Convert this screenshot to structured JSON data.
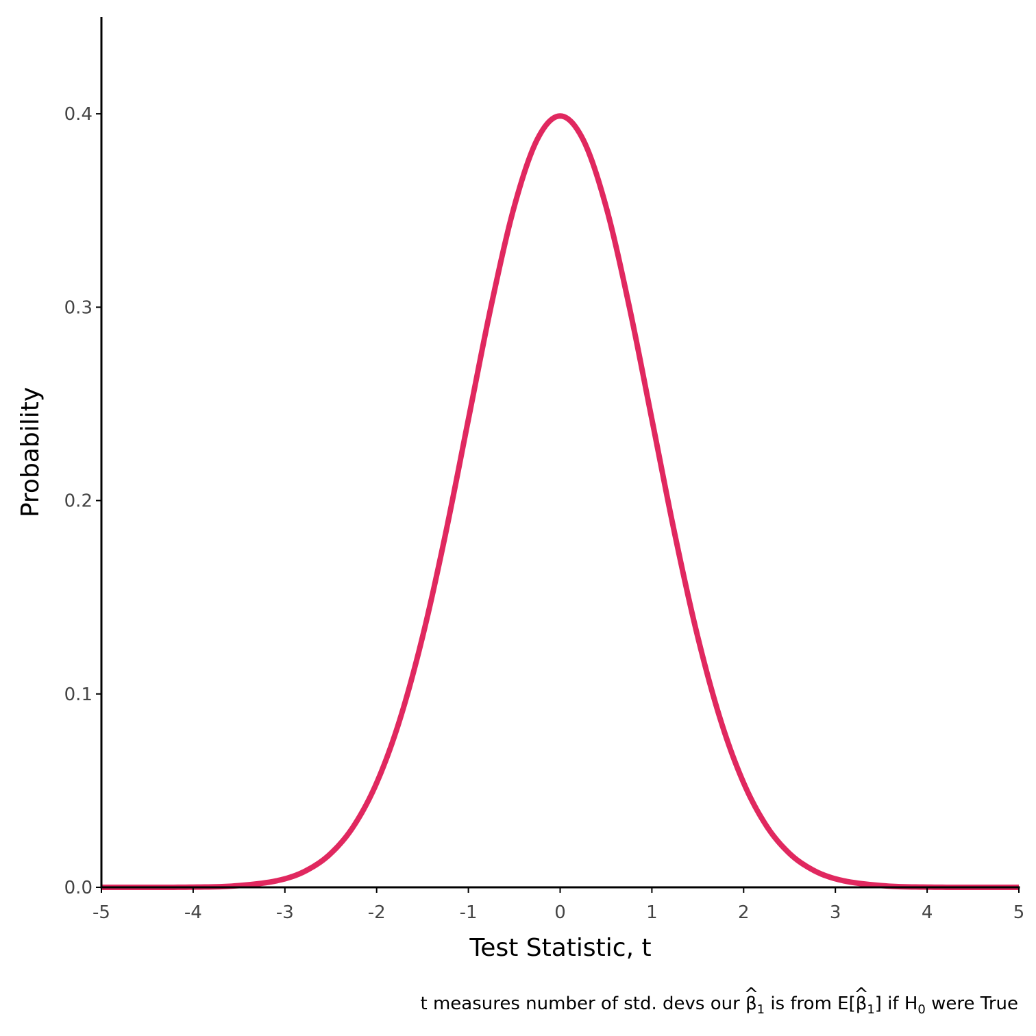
{
  "chart_data": {
    "type": "line",
    "title": "",
    "xlabel": "Test Statistic, t",
    "ylabel": "Probability",
    "caption": {
      "pre": "t measures number of std. devs our ",
      "beta_symbol": "β",
      "hat": "^",
      "subscript": "1",
      "mid": " is from E[",
      "close": "] if H",
      "h_sub": "0",
      "post": " were True"
    },
    "xlim": [
      -5,
      5
    ],
    "ylim": [
      0,
      0.45
    ],
    "x_ticks": [
      {
        "value": -5,
        "label": "-5"
      },
      {
        "value": -4,
        "label": "-4"
      },
      {
        "value": -3,
        "label": "-3"
      },
      {
        "value": -2,
        "label": "-2"
      },
      {
        "value": -1,
        "label": "-1"
      },
      {
        "value": 0,
        "label": "0"
      },
      {
        "value": 1,
        "label": "1"
      },
      {
        "value": 2,
        "label": "2"
      },
      {
        "value": 3,
        "label": "3"
      },
      {
        "value": 4,
        "label": "4"
      },
      {
        "value": 5,
        "label": "5"
      }
    ],
    "y_ticks": [
      {
        "value": 0.0,
        "label": "0.0"
      },
      {
        "value": 0.1,
        "label": "0.1"
      },
      {
        "value": 0.2,
        "label": "0.2"
      },
      {
        "value": 0.3,
        "label": "0.3"
      },
      {
        "value": 0.4,
        "label": "0.4"
      }
    ],
    "grid": false,
    "series": [
      {
        "color": "#e0285f",
        "x": [
          -5.0,
          -4.5,
          -4.0,
          -3.5,
          -3.0,
          -2.75,
          -2.5,
          -2.25,
          -2.0,
          -1.75,
          -1.5,
          -1.25,
          -1.0,
          -0.75,
          -0.5,
          -0.25,
          0.0,
          0.25,
          0.5,
          0.75,
          1.0,
          1.25,
          1.5,
          1.75,
          2.0,
          2.25,
          2.5,
          2.75,
          3.0,
          3.5,
          4.0,
          4.5,
          5.0
        ],
        "y": [
          0.0,
          0.0,
          0.0001,
          0.0009,
          0.0044,
          0.0091,
          0.0175,
          0.0317,
          0.054,
          0.0863,
          0.1295,
          0.1826,
          0.242,
          0.3011,
          0.3521,
          0.3867,
          0.3989,
          0.3867,
          0.3521,
          0.3011,
          0.242,
          0.1826,
          0.1295,
          0.0863,
          0.054,
          0.0317,
          0.0175,
          0.0091,
          0.0044,
          0.0009,
          0.0001,
          0.0,
          0.0
        ]
      }
    ]
  }
}
